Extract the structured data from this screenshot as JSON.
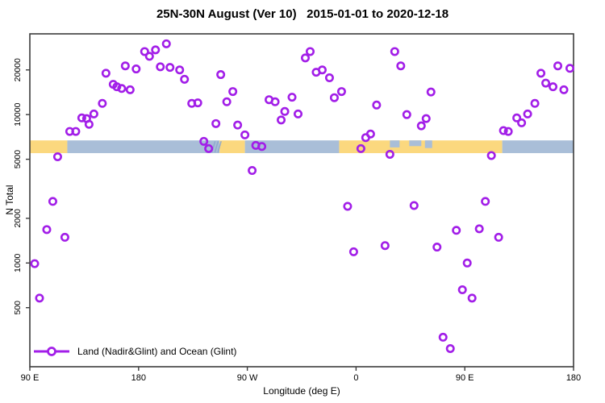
{
  "title": "25N-30N August (Ver 10)   2015-01-01 to 2020-12-18",
  "chart_data": {
    "type": "scatter",
    "title": "25N-30N August (Ver 10)   2015-01-01 to 2020-12-18",
    "xlabel": "Longitude (deg E)",
    "ylabel": "N Total",
    "x_scale": "linear",
    "y_scale": "log",
    "xlim": [
      90,
      540
    ],
    "ylim": [
      200,
      35000
    ],
    "grid": false,
    "marker": "open-circle",
    "x_ticks": [
      {
        "value": 90,
        "label": "90 E"
      },
      {
        "value": 180,
        "label": "180"
      },
      {
        "value": 270,
        "label": "90 W"
      },
      {
        "value": 360,
        "label": "0"
      },
      {
        "value": 450,
        "label": "90 E"
      },
      {
        "value": 540,
        "label": "180"
      }
    ],
    "y_ticks": [
      {
        "value": 500,
        "label": "500"
      },
      {
        "value": 1000,
        "label": "1000"
      },
      {
        "value": 2000,
        "label": "2000"
      },
      {
        "value": 5000,
        "label": "5000"
      },
      {
        "value": 10000,
        "label": "10000"
      },
      {
        "value": 20000,
        "label": "20000"
      }
    ],
    "legend": {
      "label": "Land (Nadir&Glint) and Ocean (Glint)",
      "position": "bottom-left"
    },
    "colors": {
      "marker": "#A21EE8",
      "land": "#FBD87E",
      "ocean": "#A9BED8",
      "streak": "#8FA9CC",
      "axis": "#3C3C3C"
    },
    "surface_band": {
      "value_range": [
        5500,
        6700
      ],
      "segments": [
        {
          "surface": "land",
          "from": 90,
          "to": 121
        },
        {
          "surface": "ocean",
          "from": 121,
          "to": 247
        },
        {
          "surface": "land",
          "from": 247,
          "to": 268
        },
        {
          "surface": "ocean",
          "from": 268,
          "to": 346
        },
        {
          "surface": "land",
          "from": 346,
          "to": 481
        },
        {
          "surface": "ocean",
          "from": 481,
          "to": 540
        }
      ],
      "inlets": [
        {
          "from": 388,
          "to": 396,
          "depth": 0.55
        },
        {
          "from": 404,
          "to": 414,
          "depth": 0.45
        },
        {
          "from": 417,
          "to": 423,
          "depth": 0.6
        }
      ],
      "streaks": [
        {
          "lon": 242
        },
        {
          "lon": 244.5
        },
        {
          "lon": 247
        }
      ]
    },
    "points": [
      [
        185,
        26600
      ],
      [
        194,
        27300
      ],
      [
        189,
        24700
      ],
      [
        203,
        30000
      ],
      [
        198,
        21000
      ],
      [
        206,
        20800
      ],
      [
        214,
        20000
      ],
      [
        178,
        20300
      ],
      [
        169,
        21300
      ],
      [
        153,
        19000
      ],
      [
        159,
        16000
      ],
      [
        162,
        15400
      ],
      [
        166,
        15000
      ],
      [
        173,
        14700
      ],
      [
        150,
        11900
      ],
      [
        143,
        10100
      ],
      [
        137,
        9400
      ],
      [
        133,
        9500
      ],
      [
        139,
        8600
      ],
      [
        128,
        7700
      ],
      [
        123,
        7700
      ],
      [
        113,
        5200
      ],
      [
        218,
        17300
      ],
      [
        248,
        18600
      ],
      [
        258,
        14300
      ],
      [
        253,
        12200
      ],
      [
        224,
        11900
      ],
      [
        229,
        12000
      ],
      [
        244,
        8700
      ],
      [
        262,
        8500
      ],
      [
        268,
        7300
      ],
      [
        234,
        6600
      ],
      [
        238,
        5900
      ],
      [
        277,
        6200
      ],
      [
        282,
        6100
      ],
      [
        288,
        12600
      ],
      [
        293,
        12200
      ],
      [
        307,
        13100
      ],
      [
        301,
        10500
      ],
      [
        312,
        10100
      ],
      [
        298,
        9200
      ],
      [
        318,
        24100
      ],
      [
        322,
        26600
      ],
      [
        327,
        19300
      ],
      [
        332,
        20000
      ],
      [
        338,
        17700
      ],
      [
        342,
        13000
      ],
      [
        348,
        14300
      ],
      [
        392,
        26600
      ],
      [
        397,
        21300
      ],
      [
        377,
        11600
      ],
      [
        422,
        14200
      ],
      [
        402,
        10000
      ],
      [
        418,
        9400
      ],
      [
        414,
        8400
      ],
      [
        372,
        7400
      ],
      [
        368,
        7000
      ],
      [
        364,
        5900
      ],
      [
        388,
        5400
      ],
      [
        527,
        21300
      ],
      [
        537,
        20500
      ],
      [
        513,
        19000
      ],
      [
        517,
        16300
      ],
      [
        523,
        15400
      ],
      [
        532,
        14700
      ],
      [
        508,
        11900
      ],
      [
        502,
        10100
      ],
      [
        493,
        9500
      ],
      [
        497,
        8800
      ],
      [
        482,
        7800
      ],
      [
        486,
        7700
      ],
      [
        472,
        5300
      ],
      [
        274,
        4200
      ],
      [
        109,
        2600
      ],
      [
        104,
        1680
      ],
      [
        119,
        1490
      ],
      [
        94,
        990
      ],
      [
        98,
        580
      ],
      [
        353,
        2410
      ],
      [
        408,
        2440
      ],
      [
        467,
        2600
      ],
      [
        443,
        1660
      ],
      [
        462,
        1700
      ],
      [
        478,
        1490
      ],
      [
        358,
        1190
      ],
      [
        384,
        1310
      ],
      [
        427,
        1280
      ],
      [
        452,
        1000
      ],
      [
        448,
        660
      ],
      [
        456,
        580
      ],
      [
        432,
        316
      ],
      [
        438,
        265
      ]
    ]
  }
}
